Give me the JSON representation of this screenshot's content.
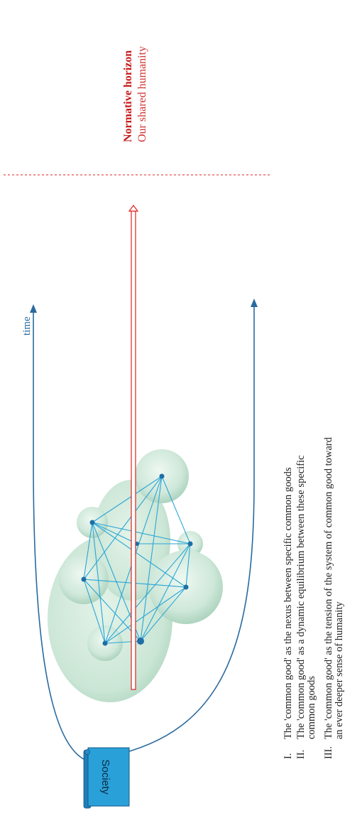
{
  "axis": {
    "time_label": "time"
  },
  "horizon": {
    "title": "Normative horizon",
    "subtitle": "Our shared humanity"
  },
  "society": {
    "label": "Society"
  },
  "points": [
    {
      "numeral": "I.",
      "lines": [
        "The 'common good' as the nexus between specific common goods"
      ]
    },
    {
      "numeral": "II.",
      "lines": [
        "The 'common good' as a dynamic equilibrium between these specific",
        "common goods"
      ]
    },
    {
      "numeral": "III.",
      "lines": [
        "The 'common good' as the tension of the system of common good toward",
        "an ever deeper sense of humanity"
      ]
    }
  ],
  "colors": {
    "curve": "#2a6a9e",
    "network": "#2aa6d6",
    "node": "#1f6fa6",
    "horizon": "#e02020",
    "society_fill": "#2aa0d8",
    "bubble": "#cfe8da"
  }
}
